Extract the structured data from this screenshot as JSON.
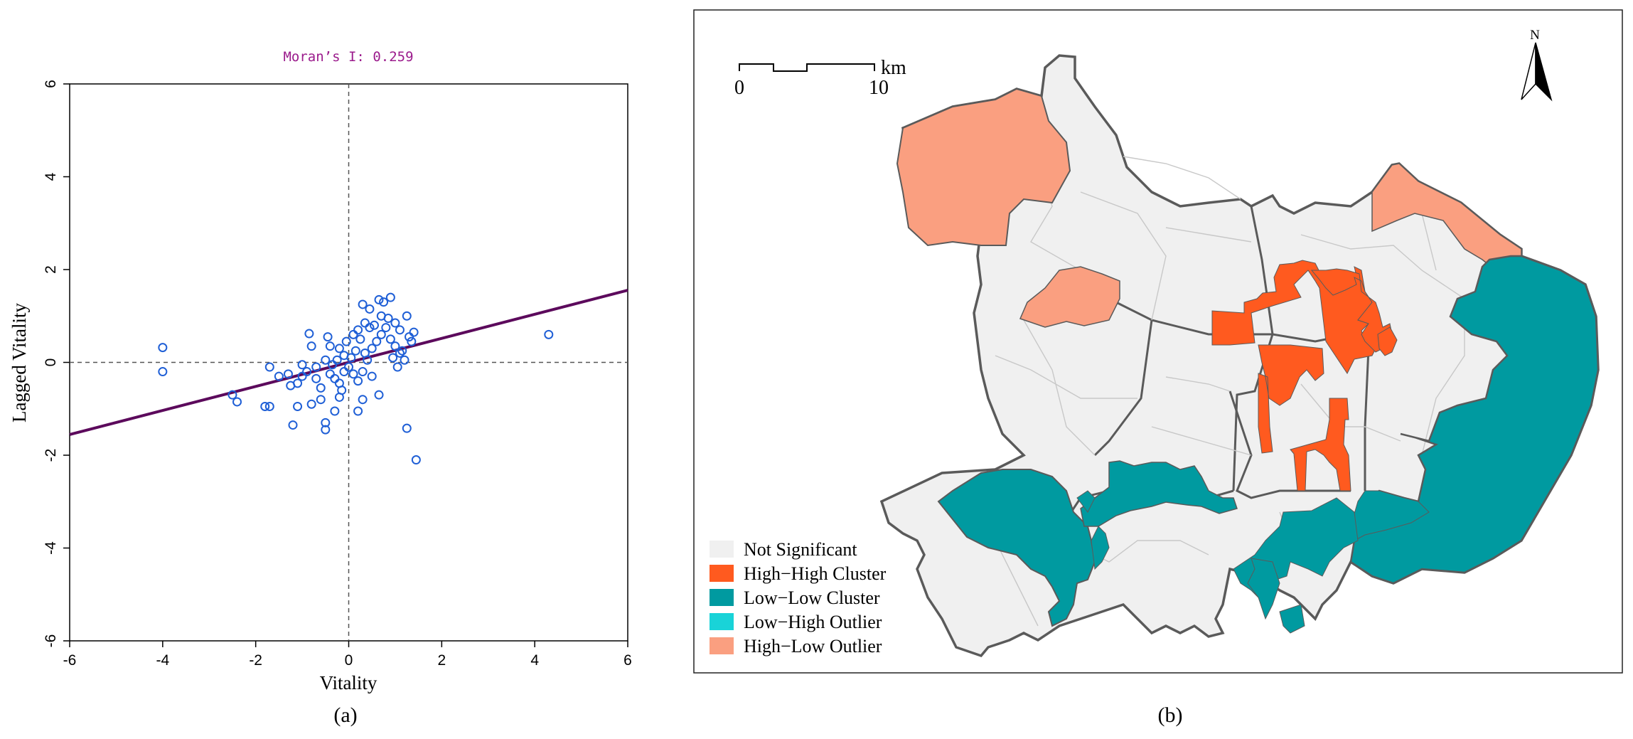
{
  "panels": {
    "a_label": "(a)",
    "b_label": "(b)"
  },
  "chart_data": {
    "type": "scatter",
    "title": "Moran’s I: 0.259",
    "xlabel": "Vitality",
    "ylabel": "Lagged Vitality",
    "xlim": [
      -6,
      6
    ],
    "ylim": [
      -6,
      6
    ],
    "x_ticks": [
      "-6",
      "-4",
      "-2",
      "0",
      "2",
      "4",
      "6"
    ],
    "y_ticks": [
      "-6",
      "-4",
      "-2",
      "0",
      "2",
      "4",
      "6"
    ],
    "regression_line": {
      "slope": 0.259,
      "intercept": 0.0
    },
    "reference_lines": {
      "x": 0,
      "y": 0
    },
    "grid": false,
    "colors": {
      "points": "#1f5fd6",
      "regression": "#5c0a5c",
      "title": "#9b1b8c",
      "reference": "#555555"
    },
    "points": [
      [
        -4.0,
        0.32
      ],
      [
        -4.0,
        -0.2
      ],
      [
        4.3,
        0.6
      ],
      [
        1.45,
        -2.1
      ],
      [
        1.25,
        -1.42
      ],
      [
        -0.5,
        -1.45
      ],
      [
        -0.5,
        -1.3
      ],
      [
        -1.2,
        -1.35
      ],
      [
        -1.8,
        -0.95
      ],
      [
        -1.7,
        -0.95
      ],
      [
        -2.4,
        -0.85
      ],
      [
        -2.5,
        -0.7
      ],
      [
        -1.1,
        -0.95
      ],
      [
        -0.3,
        -1.05
      ],
      [
        0.2,
        -1.05
      ],
      [
        0.3,
        -0.8
      ],
      [
        0.65,
        -0.7
      ],
      [
        -0.2,
        -0.75
      ],
      [
        -0.6,
        -0.8
      ],
      [
        -0.8,
        -0.9
      ],
      [
        -1.5,
        -0.3
      ],
      [
        -1.3,
        -0.25
      ],
      [
        -1.0,
        -0.3
      ],
      [
        -0.9,
        -0.2
      ],
      [
        -0.7,
        -0.1
      ],
      [
        -0.5,
        0.05
      ],
      [
        -0.4,
        -0.25
      ],
      [
        -0.3,
        -0.35
      ],
      [
        -0.2,
        -0.45
      ],
      [
        -0.1,
        -0.2
      ],
      [
        0.0,
        -0.1
      ],
      [
        0.1,
        -0.25
      ],
      [
        0.2,
        -0.4
      ],
      [
        0.05,
        0.1
      ],
      [
        -0.1,
        0.15
      ],
      [
        -0.2,
        0.3
      ],
      [
        -0.4,
        0.35
      ],
      [
        -0.45,
        0.55
      ],
      [
        -0.8,
        0.35
      ],
      [
        -0.85,
        0.62
      ],
      [
        -1.0,
        -0.05
      ],
      [
        -1.1,
        -0.45
      ],
      [
        -0.6,
        -0.55
      ],
      [
        -0.7,
        -0.35
      ],
      [
        0.35,
        0.2
      ],
      [
        0.4,
        0.05
      ],
      [
        0.5,
        0.3
      ],
      [
        0.6,
        0.45
      ],
      [
        0.7,
        0.6
      ],
      [
        0.8,
        0.75
      ],
      [
        0.9,
        0.5
      ],
      [
        1.0,
        0.35
      ],
      [
        1.1,
        0.2
      ],
      [
        1.2,
        0.05
      ],
      [
        1.3,
        0.55
      ],
      [
        1.4,
        0.65
      ],
      [
        1.35,
        0.45
      ],
      [
        1.15,
        0.25
      ],
      [
        0.85,
        0.95
      ],
      [
        0.7,
        1.0
      ],
      [
        0.75,
        1.3
      ],
      [
        0.65,
        1.35
      ],
      [
        0.9,
        1.4
      ],
      [
        0.45,
        1.15
      ],
      [
        0.3,
        1.25
      ],
      [
        0.2,
        0.7
      ],
      [
        0.25,
        0.5
      ],
      [
        0.1,
        0.6
      ],
      [
        0.45,
        0.75
      ],
      [
        0.55,
        0.8
      ],
      [
        0.35,
        0.85
      ],
      [
        1.0,
        0.85
      ],
      [
        1.1,
        0.7
      ],
      [
        0.95,
        0.1
      ],
      [
        1.05,
        -0.1
      ],
      [
        -0.25,
        0.05
      ],
      [
        -0.35,
        -0.05
      ],
      [
        0.15,
        0.25
      ],
      [
        -0.05,
        0.45
      ],
      [
        0.3,
        -0.2
      ],
      [
        -1.7,
        -0.1
      ],
      [
        -1.25,
        -0.5
      ],
      [
        -0.15,
        -0.6
      ],
      [
        0.5,
        -0.3
      ],
      [
        1.25,
        1.0
      ]
    ]
  },
  "map": {
    "north_label": "N",
    "scale_bar": {
      "unit": "km",
      "start": "0",
      "end": "10"
    },
    "legend": [
      {
        "label": "Not Significant",
        "color": "#f0f0f0"
      },
      {
        "label": "High−High Cluster",
        "color": "#ff5a1f"
      },
      {
        "label": "Low−Low Cluster",
        "color": "#009aa0"
      },
      {
        "label": "Low−High Outlier",
        "color": "#19d3d8"
      },
      {
        "label": "High−Low Outlier",
        "color": "#fa9f80"
      }
    ],
    "colors": {
      "boundary": "#5a5a5a",
      "inner_border": "#c8c8c8"
    }
  }
}
